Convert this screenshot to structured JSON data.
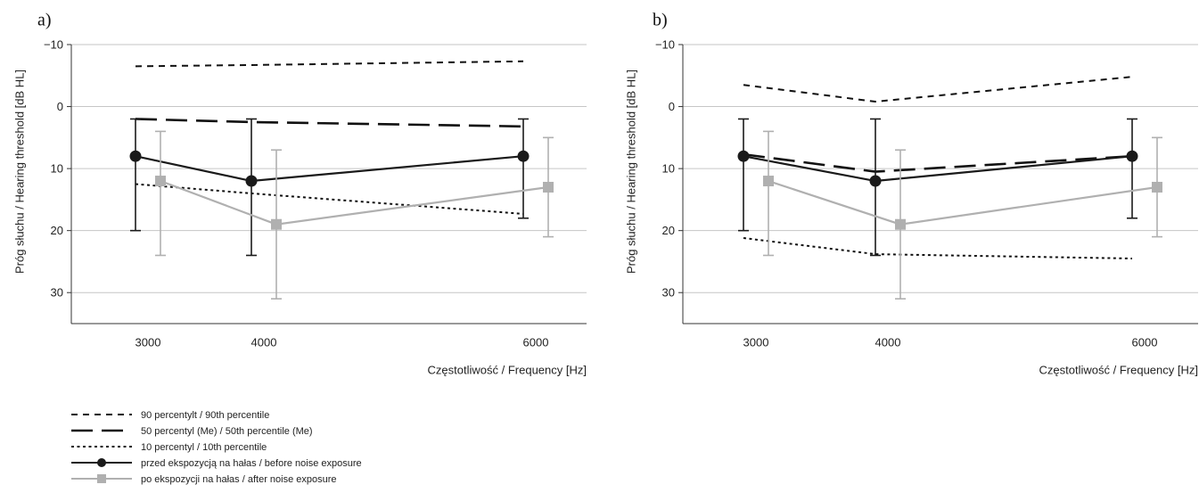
{
  "chart_data": [
    {
      "type": "line",
      "panel_label": "a)",
      "ylabel": "Próg słuchu / Hearing threshold [dB HL]",
      "xlabel": "Częstotliwość / Frequency [Hz]",
      "categories": [
        "3000",
        "4000",
        "6000"
      ],
      "yticks": [
        -10,
        0,
        10,
        20,
        30
      ],
      "ylim": [
        -10,
        35
      ],
      "y_inverted": true,
      "grid": true,
      "series": [
        {
          "key": "p90",
          "name": "90 percentylt / 90th percentile",
          "style": "short-dash",
          "color": "#111111",
          "values": [
            -6.5,
            -6.7,
            -7.3
          ]
        },
        {
          "key": "p50",
          "name": "50 percentyl (Me) / 50th percentile (Me)",
          "style": "long-dash",
          "color": "#111111",
          "values": [
            2,
            2.5,
            3.2
          ]
        },
        {
          "key": "p10",
          "name": "10 percentyl / 10th percentile",
          "style": "dotted",
          "color": "#111111",
          "values": [
            12.5,
            14,
            17.3
          ]
        },
        {
          "key": "before",
          "name": "przed ekspozycją na hałas / before noise exposure",
          "style": "solid-circle",
          "color": "#1a1a1a",
          "values": [
            8,
            12,
            8
          ],
          "err_low": [
            2,
            2,
            2
          ],
          "err_high": [
            20,
            24,
            18
          ]
        },
        {
          "key": "after",
          "name": "po ekspozycji na hałas / after noise exposure",
          "style": "solid-square",
          "color": "#b0b0b0",
          "values": [
            12,
            19,
            13
          ],
          "err_low": [
            4,
            7,
            5
          ],
          "err_high": [
            24,
            31,
            21
          ]
        }
      ]
    },
    {
      "type": "line",
      "panel_label": "b)",
      "ylabel": "Próg słuchu / Hearing threshold [dB HL]",
      "xlabel": "Częstotliwość / Frequency [Hz]",
      "categories": [
        "3000",
        "4000",
        "6000"
      ],
      "yticks": [
        -10,
        0,
        10,
        20,
        30
      ],
      "ylim": [
        -10,
        35
      ],
      "y_inverted": true,
      "grid": true,
      "series": [
        {
          "key": "p90",
          "name": "90 percentylt / 90th percentile",
          "style": "short-dash",
          "color": "#111111",
          "values": [
            -3.5,
            -0.8,
            -4.8
          ]
        },
        {
          "key": "p50",
          "name": "50 percentyl (Me) / 50th percentile (Me)",
          "style": "long-dash",
          "color": "#111111",
          "values": [
            7.7,
            10.5,
            8
          ]
        },
        {
          "key": "p10",
          "name": "10 percentyl / 10th percentile",
          "style": "dotted",
          "color": "#111111",
          "values": [
            21.2,
            23.8,
            24.5
          ]
        },
        {
          "key": "before",
          "name": "przed ekspozycją na hałas / before noise exposure",
          "style": "solid-circle",
          "color": "#1a1a1a",
          "values": [
            8,
            12,
            8
          ],
          "err_low": [
            2,
            2,
            2
          ],
          "err_high": [
            20,
            24,
            18
          ]
        },
        {
          "key": "after",
          "name": "po ekspozycji na hałas / after noise exposure",
          "style": "solid-square",
          "color": "#b0b0b0",
          "values": [
            12,
            19,
            13
          ],
          "err_low": [
            4,
            7,
            5
          ],
          "err_high": [
            24,
            31,
            21
          ]
        }
      ]
    }
  ],
  "legend": [
    {
      "label": "90 percentylt / 90th percentile",
      "style": "short-dash"
    },
    {
      "label": "50 percentyl (Me) / 50th percentile (Me)",
      "style": "long-dash"
    },
    {
      "label": "10 percentyl / 10th percentile",
      "style": "dotted"
    },
    {
      "label": "przed ekspozycją na hałas / before noise exposure",
      "style": "solid-circle"
    },
    {
      "label": "po ekspozycji na hałas / after noise exposure",
      "style": "solid-square"
    }
  ]
}
